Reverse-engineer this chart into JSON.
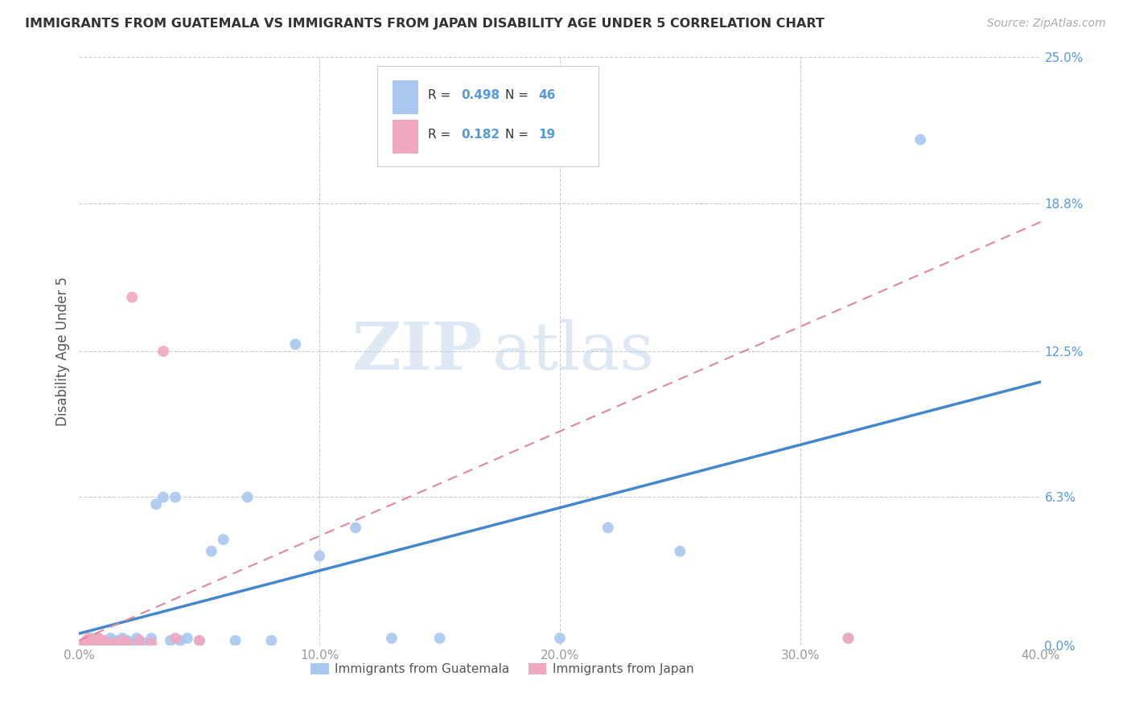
{
  "title": "IMMIGRANTS FROM GUATEMALA VS IMMIGRANTS FROM JAPAN DISABILITY AGE UNDER 5 CORRELATION CHART",
  "source": "Source: ZipAtlas.com",
  "ylabel": "Disability Age Under 5",
  "ylabel_ticks": [
    "0.0%",
    "6.3%",
    "12.5%",
    "18.8%",
    "25.0%"
  ],
  "ylabel_tick_vals": [
    0.0,
    0.063,
    0.125,
    0.188,
    0.25
  ],
  "xlabel_ticks": [
    "0.0%",
    "10.0%",
    "20.0%",
    "30.0%",
    "40.0%"
  ],
  "xlabel_tick_vals": [
    0.0,
    0.1,
    0.2,
    0.3,
    0.4
  ],
  "xlim": [
    0.0,
    0.4
  ],
  "ylim": [
    0.0,
    0.25
  ],
  "R_guatemala": 0.498,
  "N_guatemala": 46,
  "R_japan": 0.182,
  "N_japan": 19,
  "color_guatemala": "#a8c8f0",
  "color_japan": "#f0a8c0",
  "color_line_guatemala": "#4488cc",
  "color_line_japan": "#e08898",
  "watermark_zip": "ZIP",
  "watermark_atlas": "atlas",
  "grid_color": "#cccccc",
  "background_color": "#ffffff",
  "guatemala_x": [
    0.002,
    0.003,
    0.004,
    0.005,
    0.005,
    0.006,
    0.007,
    0.008,
    0.008,
    0.009,
    0.01,
    0.011,
    0.012,
    0.013,
    0.015,
    0.016,
    0.017,
    0.018,
    0.02,
    0.022,
    0.024,
    0.025,
    0.027,
    0.03,
    0.032,
    0.035,
    0.038,
    0.04,
    0.042,
    0.045,
    0.05,
    0.055,
    0.06,
    0.065,
    0.07,
    0.08,
    0.09,
    0.1,
    0.115,
    0.13,
    0.15,
    0.2,
    0.22,
    0.25,
    0.32,
    0.35
  ],
  "guatemala_y": [
    0.001,
    0.002,
    0.001,
    0.002,
    0.003,
    0.001,
    0.002,
    0.001,
    0.003,
    0.002,
    0.001,
    0.002,
    0.001,
    0.003,
    0.002,
    0.001,
    0.002,
    0.003,
    0.002,
    0.001,
    0.003,
    0.002,
    0.001,
    0.003,
    0.06,
    0.063,
    0.002,
    0.063,
    0.002,
    0.003,
    0.002,
    0.04,
    0.045,
    0.002,
    0.063,
    0.002,
    0.128,
    0.038,
    0.05,
    0.003,
    0.003,
    0.003,
    0.05,
    0.04,
    0.003,
    0.215
  ],
  "japan_x": [
    0.002,
    0.003,
    0.004,
    0.005,
    0.006,
    0.007,
    0.008,
    0.01,
    0.012,
    0.015,
    0.018,
    0.02,
    0.022,
    0.025,
    0.03,
    0.035,
    0.04,
    0.05,
    0.32
  ],
  "japan_y": [
    0.001,
    0.002,
    0.003,
    0.001,
    0.002,
    0.001,
    0.003,
    0.002,
    0.001,
    0.001,
    0.002,
    0.001,
    0.148,
    0.002,
    0.001,
    0.125,
    0.003,
    0.002,
    0.003
  ],
  "line_guatemala": {
    "x0": 0.0,
    "y0": 0.005,
    "x1": 0.4,
    "y1": 0.112
  },
  "line_japan": {
    "x0": 0.0,
    "y0": 0.002,
    "x1": 0.4,
    "y1": 0.18
  }
}
